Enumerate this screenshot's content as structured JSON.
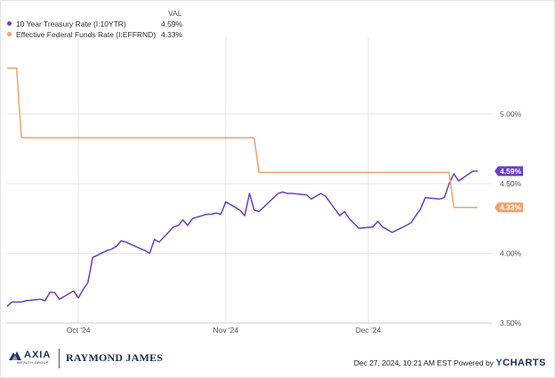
{
  "legend": {
    "value_header": "VAL",
    "items": [
      {
        "label": "10 Year Treasury Rate (I:10YTR)",
        "value": "4.59%",
        "color": "#6a3fc8"
      },
      {
        "label": "Effective Federal Funds Rate (I:EFFRND)",
        "value": "4.33%",
        "color": "#f4a26b"
      }
    ]
  },
  "chart_data": {
    "type": "line",
    "title": "",
    "xlabel": "",
    "ylabel": "",
    "x_ticks": [
      {
        "date": "2024-10-01",
        "label": "Oct '24"
      },
      {
        "date": "2024-11-01",
        "label": "Nov '24"
      },
      {
        "date": "2024-12-01",
        "label": "Dec '24"
      }
    ],
    "y_ticks": [
      {
        "value": 3.5,
        "label": "3.50%"
      },
      {
        "value": 4.0,
        "label": "4.00%"
      },
      {
        "value": 4.5,
        "label": "4.50%"
      },
      {
        "value": 5.0,
        "label": "5.00%"
      }
    ],
    "xlim": [
      "2024-09-16",
      "2024-12-27"
    ],
    "ylim": [
      3.5,
      5.5
    ],
    "grid": true,
    "series": [
      {
        "name": "10 Year Treasury Rate (I:10YTR)",
        "color": "#6a3fc8",
        "end_label": "4.59%",
        "points": [
          [
            "2024-09-16",
            3.62
          ],
          [
            "2024-09-17",
            3.65
          ],
          [
            "2024-09-18",
            3.65
          ],
          [
            "2024-09-19",
            3.65
          ],
          [
            "2024-09-20",
            3.66
          ],
          [
            "2024-09-23",
            3.67
          ],
          [
            "2024-09-24",
            3.66
          ],
          [
            "2024-09-25",
            3.72
          ],
          [
            "2024-09-26",
            3.72
          ],
          [
            "2024-09-27",
            3.67
          ],
          [
            "2024-09-30",
            3.73
          ],
          [
            "2024-10-01",
            3.68
          ],
          [
            "2024-10-02",
            3.74
          ],
          [
            "2024-10-03",
            3.79
          ],
          [
            "2024-10-04",
            3.97
          ],
          [
            "2024-10-07",
            4.02
          ],
          [
            "2024-10-08",
            4.03
          ],
          [
            "2024-10-09",
            4.05
          ],
          [
            "2024-10-10",
            4.09
          ],
          [
            "2024-10-11",
            4.08
          ],
          [
            "2024-10-15",
            4.02
          ],
          [
            "2024-10-16",
            4.0
          ],
          [
            "2024-10-17",
            4.1
          ],
          [
            "2024-10-18",
            4.08
          ],
          [
            "2024-10-21",
            4.19
          ],
          [
            "2024-10-22",
            4.2
          ],
          [
            "2024-10-23",
            4.24
          ],
          [
            "2024-10-24",
            4.2
          ],
          [
            "2024-10-25",
            4.25
          ],
          [
            "2024-10-28",
            4.28
          ],
          [
            "2024-10-29",
            4.28
          ],
          [
            "2024-10-30",
            4.29
          ],
          [
            "2024-10-31",
            4.28
          ],
          [
            "2024-11-01",
            4.37
          ],
          [
            "2024-11-04",
            4.31
          ],
          [
            "2024-11-05",
            4.27
          ],
          [
            "2024-11-06",
            4.43
          ],
          [
            "2024-11-07",
            4.31
          ],
          [
            "2024-11-08",
            4.3
          ],
          [
            "2024-11-12",
            4.43
          ],
          [
            "2024-11-13",
            4.44
          ],
          [
            "2024-11-14",
            4.43
          ],
          [
            "2024-11-15",
            4.43
          ],
          [
            "2024-11-18",
            4.42
          ],
          [
            "2024-11-19",
            4.39
          ],
          [
            "2024-11-20",
            4.41
          ],
          [
            "2024-11-21",
            4.43
          ],
          [
            "2024-11-22",
            4.41
          ],
          [
            "2024-11-25",
            4.27
          ],
          [
            "2024-11-26",
            4.3
          ],
          [
            "2024-11-27",
            4.25
          ],
          [
            "2024-11-29",
            4.18
          ],
          [
            "2024-12-02",
            4.19
          ],
          [
            "2024-12-03",
            4.23
          ],
          [
            "2024-12-04",
            4.19
          ],
          [
            "2024-12-05",
            4.17
          ],
          [
            "2024-12-06",
            4.15
          ],
          [
            "2024-12-09",
            4.2
          ],
          [
            "2024-12-10",
            4.22
          ],
          [
            "2024-12-11",
            4.27
          ],
          [
            "2024-12-12",
            4.32
          ],
          [
            "2024-12-13",
            4.4
          ],
          [
            "2024-12-16",
            4.39
          ],
          [
            "2024-12-17",
            4.4
          ],
          [
            "2024-12-18",
            4.5
          ],
          [
            "2024-12-19",
            4.57
          ],
          [
            "2024-12-20",
            4.52
          ],
          [
            "2024-12-23",
            4.59
          ],
          [
            "2024-12-24",
            4.59
          ]
        ]
      },
      {
        "name": "Effective Federal Funds Rate (I:EFFRND)",
        "color": "#f4a26b",
        "end_label": "4.33%",
        "points": [
          [
            "2024-09-16",
            5.33
          ],
          [
            "2024-09-17",
            5.33
          ],
          [
            "2024-09-18",
            5.33
          ],
          [
            "2024-09-19",
            4.83
          ],
          [
            "2024-11-07",
            4.83
          ],
          [
            "2024-11-08",
            4.58
          ],
          [
            "2024-12-18",
            4.58
          ],
          [
            "2024-12-19",
            4.33
          ],
          [
            "2024-12-24",
            4.33
          ]
        ]
      }
    ]
  },
  "footer": {
    "axia_name": "AXIA",
    "axia_sub": "WEALTH GROUP",
    "rj_name": "RAYMOND JAMES",
    "credit_text": "Dec 27, 2024, 10:21 AM EST Powered by",
    "credit_brand_y": "Y",
    "credit_brand_rest": "CHARTS"
  }
}
